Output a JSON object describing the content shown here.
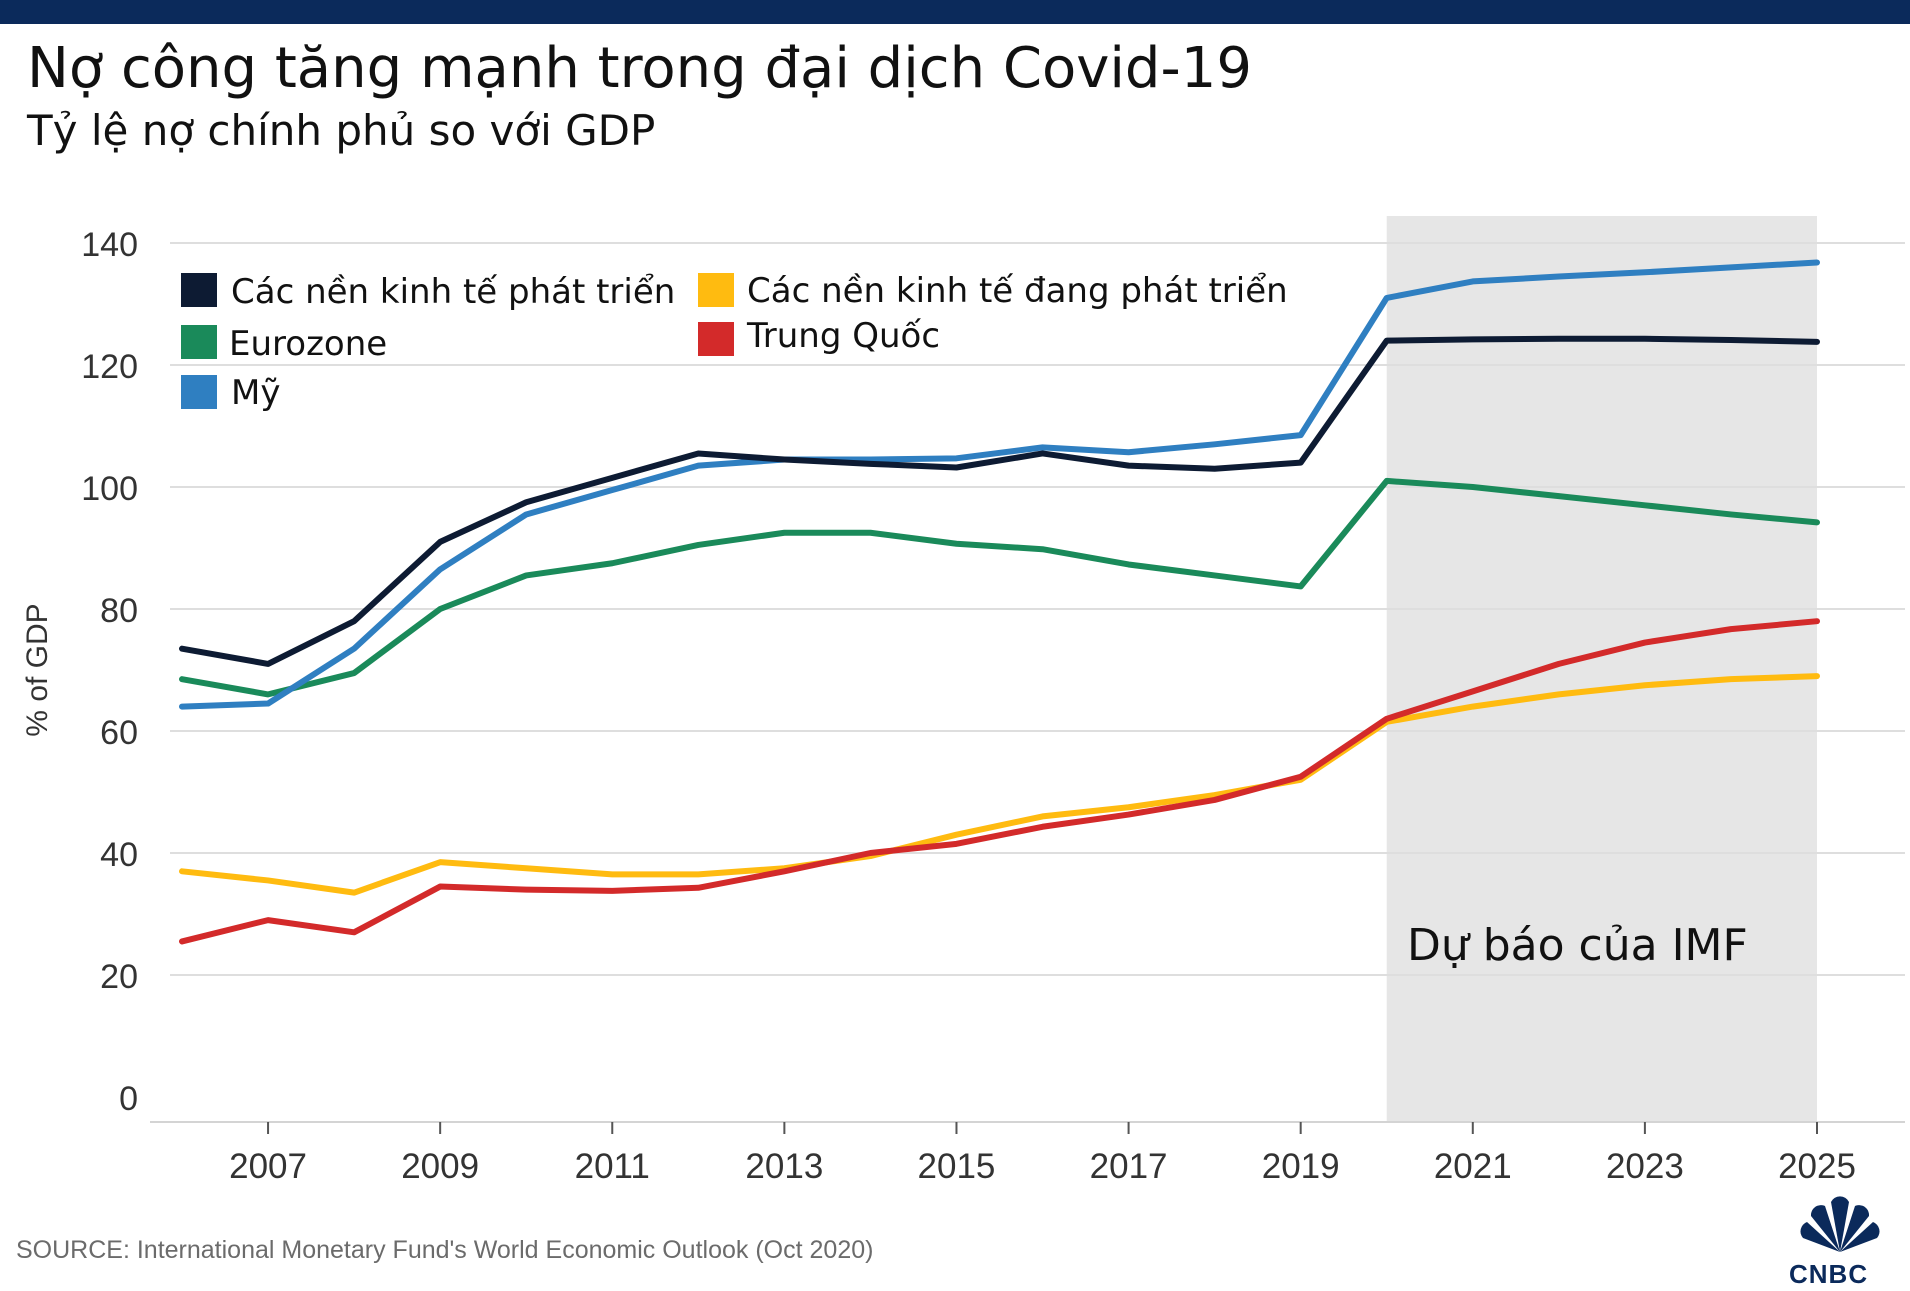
{
  "header": {
    "title": "Nợ công tăng mạnh trong đại dịch Covid-19",
    "subtitle": "Tỷ lệ nợ chính phủ so với GDP"
  },
  "chart_data": {
    "type": "line",
    "x": [
      2006,
      2007,
      2008,
      2009,
      2010,
      2011,
      2012,
      2013,
      2014,
      2015,
      2016,
      2017,
      2018,
      2019,
      2020,
      2021,
      2022,
      2023,
      2024,
      2025
    ],
    "series": [
      {
        "name": "Các nền kinh tế phát triển",
        "color": "#0d1b33",
        "values": [
          73.5,
          71,
          78,
          91,
          97.5,
          101.5,
          105.5,
          104.5,
          103.8,
          103.2,
          105.5,
          103.5,
          103,
          104,
          124,
          124.2,
          124.3,
          124.3,
          124.1,
          123.8
        ]
      },
      {
        "name": "Eurozone",
        "color": "#1a8a5a",
        "values": [
          68.5,
          66,
          69.5,
          80,
          85.5,
          87.5,
          90.5,
          92.5,
          92.5,
          90.7,
          89.8,
          87.3,
          85.5,
          83.7,
          101,
          100,
          98.5,
          97,
          95.5,
          94.2
        ]
      },
      {
        "name": "Mỹ",
        "color": "#2f7fc1",
        "values": [
          64,
          64.5,
          73.5,
          86.5,
          95.5,
          99.5,
          103.5,
          104.5,
          104.5,
          104.7,
          106.5,
          105.7,
          107,
          108.5,
          131,
          133.7,
          134.5,
          135.2,
          136,
          136.8
        ]
      },
      {
        "name": "Các nền kinh tế đang phát triển",
        "color": "#ffbb10",
        "values": [
          37,
          35.5,
          33.5,
          38.5,
          37.5,
          36.5,
          36.5,
          37.5,
          39.5,
          43,
          46,
          47.5,
          49.5,
          52,
          61.5,
          64,
          66,
          67.5,
          68.5,
          69
        ]
      },
      {
        "name": "Trung Quốc",
        "color": "#d32a2a",
        "values": [
          25.5,
          29,
          27,
          34.5,
          34,
          33.8,
          34.3,
          37,
          40,
          41.5,
          44.3,
          46.3,
          48.7,
          52.5,
          62,
          66.5,
          71,
          74.5,
          76.7,
          78
        ]
      }
    ],
    "title": "Nợ công tăng mạnh trong đại dịch Covid-19",
    "subtitle": "Tỷ lệ nợ chính phủ so với GDP",
    "xlabel": "",
    "ylabel": "% of GDP",
    "ylim": [
      0,
      140
    ],
    "yticks": [
      "0",
      "20",
      "40",
      "60",
      "80",
      "100",
      "120",
      "140"
    ],
    "xticks": [
      "2007",
      "2009",
      "2011",
      "2013",
      "2015",
      "2017",
      "2019",
      "2021",
      "2023",
      "2025"
    ],
    "forecast_start": 2020,
    "forecast_end": 2025,
    "forecast_label": "Dự báo của IMF",
    "grid": true,
    "legend_position": "top-left"
  },
  "footer": {
    "source": "SOURCE: International Monetary Fund's World Economic Outlook (Oct 2020)",
    "logo_text": "CNBC"
  }
}
